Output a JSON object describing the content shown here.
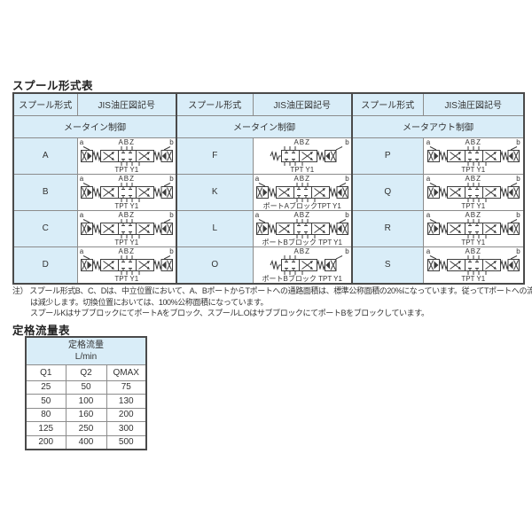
{
  "colors": {
    "header_bg": "#d9edf8",
    "grid_inner": "#8c8c8c",
    "grid_outer": "#4a4a4a",
    "text": "#333333"
  },
  "spool_table": {
    "title": "スプール形式表",
    "col_headers": {
      "spool": "スプール形式",
      "jis": "JIS油圧図記号"
    },
    "group_headers": [
      "メータイン制御",
      "メータイン制御",
      "メータアウト制御"
    ],
    "rows": [
      {
        "cells": [
          {
            "letter": "A",
            "valve_type": "3pos",
            "label_a": "a",
            "label_ports_top": "ABZ",
            "label_b": "b",
            "label_bottom": "TPT Y1"
          },
          {
            "letter": "F",
            "valve_type": "2pos",
            "label_a": "",
            "label_ports_top": "ABZ",
            "label_b": "b",
            "label_bottom": "TPT Y1"
          },
          {
            "letter": "P",
            "valve_type": "3pos",
            "label_a": "a",
            "label_ports_top": "ABZ",
            "label_b": "b",
            "label_bottom": "TPT Y1"
          }
        ]
      },
      {
        "cells": [
          {
            "letter": "B",
            "valve_type": "3pos",
            "label_a": "a",
            "label_ports_top": "ABZ",
            "label_b": "b",
            "label_bottom": "TPT Y1"
          },
          {
            "letter": "K",
            "valve_type": "3pos",
            "label_a": "a",
            "label_ports_top": "ABZ",
            "label_b": "b",
            "label_bottom": "ポートAブロックTPT Y1"
          },
          {
            "letter": "Q",
            "valve_type": "3pos",
            "label_a": "a",
            "label_ports_top": "ABZ",
            "label_b": "b",
            "label_bottom": "TPT Y1"
          }
        ]
      },
      {
        "cells": [
          {
            "letter": "C",
            "valve_type": "3pos",
            "label_a": "a",
            "label_ports_top": "ABZ",
            "label_b": "b",
            "label_bottom": "TPT Y1"
          },
          {
            "letter": "L",
            "valve_type": "3pos",
            "label_a": "a",
            "label_ports_top": "ABZ",
            "label_b": "b",
            "label_bottom": "ポートBブロック TPT Y1"
          },
          {
            "letter": "R",
            "valve_type": "3pos",
            "label_a": "a",
            "label_ports_top": "ABZ",
            "label_b": "b",
            "label_bottom": "TPT Y1"
          }
        ]
      },
      {
        "cells": [
          {
            "letter": "D",
            "valve_type": "3pos",
            "label_a": "a",
            "label_ports_top": "ABZ",
            "label_b": "b",
            "label_bottom": "TPT Y1"
          },
          {
            "letter": "O",
            "valve_type": "2pos",
            "label_a": "",
            "label_ports_top": "ABZ",
            "label_b": "b",
            "label_bottom": "ポートBブロック TPT Y1"
          },
          {
            "letter": "S",
            "valve_type": "3pos",
            "label_a": "a",
            "label_ports_top": "ABZ",
            "label_b": "b",
            "label_bottom": "TPT Y1"
          }
        ]
      }
    ]
  },
  "note": {
    "label": "注）",
    "lines": [
      "スプール形式B、C、Dは、中立位置において、A、BポートからTポートへの通路面積は、標準公称面積の20%になっています。従ってTポートへの流量",
      "は減少します。切換位置においては、100%公称面積になっています。",
      "スプールKはサブブロックにてポートAをブロック、スプールL.OはサブブロックにてポートBをブロックしています。"
    ]
  },
  "flow_table": {
    "title": "定格流量表",
    "header": {
      "title": "定格流量",
      "unit": "L/min"
    },
    "columns": [
      "Q1",
      "Q2",
      "QMAX"
    ],
    "rows": [
      [
        "25",
        "50",
        "75"
      ],
      [
        "50",
        "100",
        "130"
      ],
      [
        "80",
        "160",
        "200"
      ],
      [
        "125",
        "250",
        "300"
      ],
      [
        "200",
        "400",
        "500"
      ]
    ]
  }
}
